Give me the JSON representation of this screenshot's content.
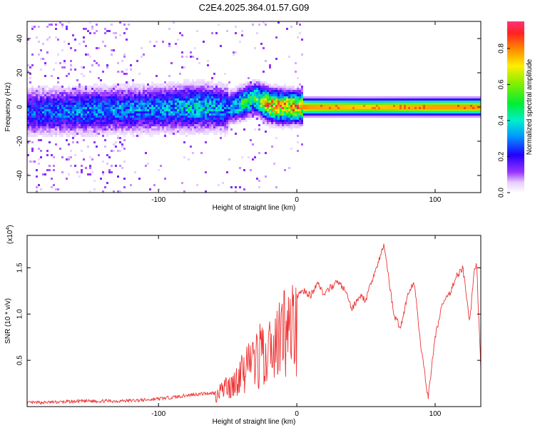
{
  "chart_data": [
    {
      "type": "heatmap",
      "title": "C2E4.2025.364.01.57.G09",
      "xlabel": "Height of straight line (km)",
      "ylabel": "Frequency (Hz)",
      "xlim": [
        -195,
        133
      ],
      "ylim": [
        -50,
        50
      ],
      "xticks": [
        -100,
        0,
        100
      ],
      "xtick_labels": [
        "-100",
        "0",
        "100"
      ],
      "yticks": [
        -40,
        -20,
        0,
        20,
        40
      ],
      "ytick_labels": [
        "-40",
        "-20",
        "0",
        "20",
        "40"
      ],
      "colorbar": {
        "label": "Normalized spectral amplitude",
        "range": [
          0,
          0.95
        ],
        "ticks": [
          0,
          0.2,
          0.4,
          0.6,
          0.8
        ],
        "tick_labels": [
          "0.0",
          "0.2",
          "0.4",
          "0.6",
          "0.8"
        ]
      },
      "ridge": {
        "description_x": [
          -195,
          -150,
          -100,
          -70,
          -50,
          -40,
          -30,
          -20,
          -10,
          0,
          10,
          50,
          100,
          133
        ],
        "center_freq": [
          -3,
          -2,
          -1,
          0,
          -1,
          2,
          5,
          1,
          0,
          0,
          0,
          0,
          0,
          0
        ],
        "peak_amplitude": [
          0.3,
          0.35,
          0.35,
          0.45,
          0.35,
          0.5,
          0.55,
          0.9,
          0.9,
          0.85,
          0.8,
          0.75,
          0.8,
          0.8
        ]
      }
    },
    {
      "type": "line",
      "xlabel": "Height of straight line (km)",
      "ylabel": "SNR (10 * v/v)",
      "exponent_label": "(x10",
      "exponent_value": "4",
      "exponent_close": ")",
      "xlim": [
        -195,
        133
      ],
      "ylim": [
        0,
        1.85
      ],
      "xticks": [
        -100,
        0,
        100
      ],
      "xtick_labels": [
        "-100",
        "0",
        "100"
      ],
      "yticks": [
        0.5,
        1.0,
        1.5
      ],
      "ytick_labels": [
        "0.5",
        "1.0",
        "1.5"
      ],
      "color": "#ee3333",
      "series": [
        {
          "name": "SNR",
          "x": [
            -195,
            -170,
            -150,
            -130,
            -110,
            -90,
            -75,
            -60,
            -55,
            -50,
            -45,
            -40,
            -35,
            -30,
            -25,
            -20,
            -15,
            -10,
            -5,
            0,
            5,
            10,
            15,
            20,
            25,
            30,
            35,
            40,
            45,
            50,
            55,
            60,
            63,
            65,
            70,
            75,
            80,
            85,
            90,
            95,
            100,
            105,
            110,
            115,
            120,
            125,
            128,
            130,
            133
          ],
          "y": [
            0.04,
            0.05,
            0.06,
            0.06,
            0.07,
            0.1,
            0.13,
            0.15,
            0.22,
            0.3,
            0.38,
            0.5,
            0.6,
            0.7,
            0.82,
            0.9,
            1.0,
            1.1,
            1.15,
            1.2,
            1.25,
            1.2,
            1.35,
            1.2,
            1.3,
            1.35,
            1.25,
            1.05,
            1.2,
            1.15,
            1.4,
            1.6,
            1.75,
            1.55,
            1.0,
            0.85,
            1.2,
            1.35,
            0.6,
            0.1,
            0.75,
            1.1,
            1.2,
            1.4,
            1.5,
            0.9,
            1.45,
            1.55,
            0.4
          ]
        }
      ]
    }
  ]
}
